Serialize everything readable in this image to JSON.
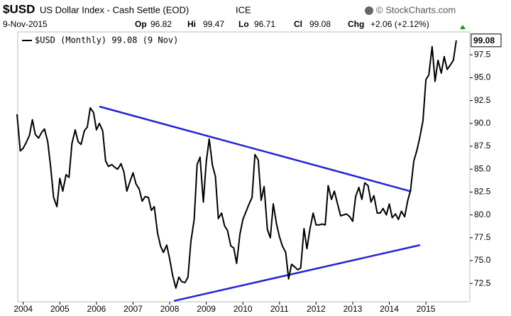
{
  "chart_data": {
    "type": "line",
    "header": {
      "symbol": "$USD",
      "name": "US Dollar Index - Cash Settle (EOD)",
      "exchange": "ICE",
      "brand": "© StockCharts.com",
      "date": "9-Nov-2015",
      "quote": [
        {
          "label": "Op",
          "value": "96.82"
        },
        {
          "label": "Hi",
          "value": "99.47"
        },
        {
          "label": "Lo",
          "value": "96.71"
        },
        {
          "label": "Cl",
          "value": "99.08"
        },
        {
          "label": "Chg",
          "value": "+2.06 (+2.12%)"
        }
      ]
    },
    "x": [
      2003.83,
      2003.92,
      2004.0,
      2004.08,
      2004.17,
      2004.25,
      2004.33,
      2004.42,
      2004.5,
      2004.58,
      2004.67,
      2004.75,
      2004.83,
      2004.92,
      2005.0,
      2005.08,
      2005.17,
      2005.25,
      2005.33,
      2005.42,
      2005.5,
      2005.58,
      2005.67,
      2005.75,
      2005.83,
      2005.92,
      2006.0,
      2006.08,
      2006.17,
      2006.25,
      2006.33,
      2006.42,
      2006.5,
      2006.58,
      2006.67,
      2006.75,
      2006.83,
      2006.92,
      2007.0,
      2007.08,
      2007.17,
      2007.25,
      2007.33,
      2007.42,
      2007.5,
      2007.58,
      2007.67,
      2007.75,
      2007.83,
      2007.92,
      2008.0,
      2008.08,
      2008.17,
      2008.25,
      2008.33,
      2008.42,
      2008.5,
      2008.58,
      2008.67,
      2008.75,
      2008.83,
      2008.92,
      2009.0,
      2009.08,
      2009.17,
      2009.25,
      2009.33,
      2009.42,
      2009.5,
      2009.58,
      2009.67,
      2009.75,
      2009.83,
      2009.92,
      2010.0,
      2010.08,
      2010.17,
      2010.25,
      2010.33,
      2010.42,
      2010.5,
      2010.58,
      2010.67,
      2010.75,
      2010.83,
      2010.92,
      2011.0,
      2011.08,
      2011.17,
      2011.25,
      2011.33,
      2011.42,
      2011.5,
      2011.58,
      2011.67,
      2011.75,
      2011.83,
      2011.92,
      2012.0,
      2012.08,
      2012.17,
      2012.25,
      2012.33,
      2012.42,
      2012.5,
      2012.58,
      2012.67,
      2012.75,
      2012.83,
      2012.92,
      2013.0,
      2013.08,
      2013.17,
      2013.25,
      2013.33,
      2013.42,
      2013.5,
      2013.58,
      2013.67,
      2013.75,
      2013.83,
      2013.92,
      2014.0,
      2014.08,
      2014.17,
      2014.25,
      2014.33,
      2014.42,
      2014.5,
      2014.58,
      2014.67,
      2014.75,
      2014.83,
      2014.92,
      2015.0,
      2015.08,
      2015.17,
      2015.25,
      2015.33,
      2015.42,
      2015.5,
      2015.58,
      2015.67,
      2015.75,
      2015.83
    ],
    "series": [
      {
        "name": "$USD (Monthly) 99.08 (9 Nov)",
        "color": "#000000",
        "values": [
          91.0,
          87.0,
          87.3,
          87.9,
          88.7,
          90.4,
          88.8,
          88.4,
          89.0,
          89.4,
          88.0,
          85.2,
          81.9,
          80.9,
          84.0,
          82.6,
          84.4,
          84.1,
          87.8,
          89.3,
          88.0,
          87.7,
          89.2,
          89.6,
          91.7,
          91.2,
          89.3,
          90.0,
          89.2,
          85.9,
          85.3,
          85.5,
          85.2,
          85.0,
          85.6,
          84.7,
          82.6,
          83.7,
          84.6,
          83.4,
          82.8,
          81.5,
          82.0,
          81.9,
          80.5,
          80.9,
          78.0,
          76.6,
          75.9,
          76.7,
          75.2,
          73.4,
          72.0,
          73.2,
          72.7,
          72.6,
          73.2,
          77.1,
          79.5,
          85.5,
          86.3,
          81.4,
          85.8,
          88.3,
          85.4,
          84.2,
          79.6,
          80.2,
          78.8,
          78.3,
          76.6,
          76.4,
          74.7,
          77.9,
          79.5,
          80.3,
          81.2,
          81.9,
          86.6,
          86.0,
          81.6,
          83.1,
          78.4,
          77.5,
          81.2,
          79.0,
          77.6,
          76.6,
          75.9,
          73.0,
          74.6,
          74.3,
          74.0,
          74.2,
          78.5,
          76.3,
          78.4,
          80.2,
          78.9,
          78.9,
          79.0,
          78.9,
          83.2,
          81.7,
          82.6,
          81.3,
          79.9,
          80.0,
          80.1,
          79.8,
          79.3,
          82.0,
          83.0,
          81.7,
          83.5,
          83.2,
          81.4,
          82.1,
          80.2,
          80.2,
          80.7,
          80.0,
          81.2,
          79.7,
          80.1,
          79.5,
          80.4,
          79.8,
          81.5,
          82.7,
          85.9,
          87.0,
          88.4,
          90.3,
          94.8,
          95.3,
          98.4,
          94.6,
          96.9,
          95.5,
          97.3,
          95.9,
          96.4,
          96.9,
          99.08
        ]
      }
    ],
    "last_value_label": "99.08",
    "trendlines": [
      {
        "x": [
          2006.08,
          2014.6
        ],
        "y": [
          91.85,
          82.56
        ],
        "color": "#2323d8"
      },
      {
        "x": [
          2008.12,
          2014.84
        ],
        "y": [
          70.6,
          76.7
        ],
        "color": "#2323d8"
      }
    ],
    "xlim": [
      2003.85,
      2016.2
    ],
    "xticks": [
      2004,
      2005,
      2006,
      2007,
      2008,
      2009,
      2010,
      2011,
      2012,
      2013,
      2014,
      2015
    ],
    "ylim": [
      70.5,
      100
    ],
    "yticks": [
      72.5,
      {
        "value": 75,
        "label": "75.0"
      },
      77.5,
      {
        "value": 80,
        "label": "80.0"
      },
      82.5,
      {
        "value": 85,
        "label": "85.0"
      },
      87.5,
      {
        "value": 90,
        "label": "90.0"
      },
      92.5,
      {
        "value": 95,
        "label": "95.0"
      },
      97.5
    ],
    "legend": "top-left"
  }
}
